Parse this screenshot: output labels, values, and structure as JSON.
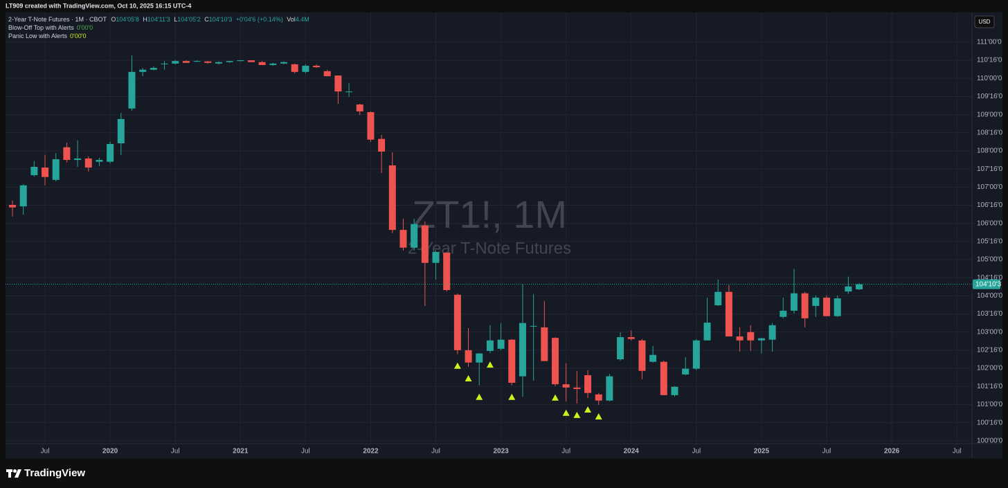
{
  "chart_data": {
    "type": "candlestick",
    "credit": "LT909 created with TradingView.com, Oct 10, 2025 16:15 UTC-4",
    "symbol_line": "2-Year T-Note Futures · 1M · CBOT",
    "legend": {
      "open_key": "O",
      "open": "104'05'8",
      "high_key": "H",
      "high": "104'11'3",
      "low_key": "L",
      "low": "104'05'2",
      "close_key": "C",
      "close": "104'10'3",
      "change": "+0'04'6 (+0.14%)",
      "volume_key": "Vol",
      "volume": "4.4M"
    },
    "indicators": [
      {
        "name": "Blow-Off Top with Alerts",
        "value": "0'00'0"
      },
      {
        "name": "Panic Low with Alerts",
        "value": "0'00'0"
      }
    ],
    "watermark": "ZT1!, 1M",
    "watermark_subtitle": "2-Year T-Note Futures",
    "currency": "USD",
    "brand": "TradingView",
    "up_color": "#26a69a",
    "down_color": "#ef5350",
    "signal_color": "#cdf01e",
    "grid": true,
    "x": [
      "2019-04",
      "2019-05",
      "2019-06",
      "2019-07",
      "2019-08",
      "2019-09",
      "2019-10",
      "2019-11",
      "2019-12",
      "2020-01",
      "2020-02",
      "2020-03",
      "2020-04",
      "2020-05",
      "2020-06",
      "2020-07",
      "2020-08",
      "2020-09",
      "2020-10",
      "2020-11",
      "2020-12",
      "2021-01",
      "2021-02",
      "2021-03",
      "2021-04",
      "2021-05",
      "2021-06",
      "2021-07",
      "2021-08",
      "2021-09",
      "2021-10",
      "2021-11",
      "2021-12",
      "2022-01",
      "2022-02",
      "2022-03",
      "2022-04",
      "2022-05",
      "2022-06",
      "2022-07",
      "2022-08",
      "2022-09",
      "2022-10",
      "2022-11",
      "2022-12",
      "2023-01",
      "2023-02",
      "2023-03",
      "2023-04",
      "2023-05",
      "2023-06",
      "2023-07",
      "2023-08",
      "2023-09",
      "2023-10",
      "2023-11",
      "2023-12",
      "2024-01",
      "2024-02",
      "2024-03",
      "2024-04",
      "2024-05",
      "2024-06",
      "2024-07",
      "2024-08",
      "2024-09",
      "2024-10",
      "2024-11",
      "2024-12",
      "2025-01",
      "2025-02",
      "2025-03",
      "2025-04",
      "2025-05",
      "2025-06",
      "2025-07",
      "2025-08",
      "2025-09",
      "2025-10"
    ],
    "ohlc": [
      [
        106.51,
        106.63,
        106.19,
        106.44
      ],
      [
        106.47,
        107.08,
        106.24,
        107.05
      ],
      [
        107.33,
        107.72,
        107.29,
        107.56
      ],
      [
        107.54,
        107.89,
        107.05,
        107.28
      ],
      [
        107.2,
        107.94,
        107.16,
        107.77
      ],
      [
        108.1,
        108.23,
        107.68,
        107.75
      ],
      [
        107.75,
        108.29,
        107.56,
        107.79
      ],
      [
        107.79,
        107.85,
        107.43,
        107.54
      ],
      [
        107.7,
        107.81,
        107.58,
        107.75
      ],
      [
        107.7,
        108.25,
        107.66,
        108.19
      ],
      [
        108.21,
        109.05,
        107.89,
        108.88
      ],
      [
        109.17,
        110.64,
        109.11,
        110.18
      ],
      [
        110.18,
        110.29,
        110.06,
        110.24
      ],
      [
        110.24,
        110.33,
        110.22,
        110.29
      ],
      [
        110.39,
        110.48,
        110.24,
        110.41
      ],
      [
        110.41,
        110.5,
        110.39,
        110.48
      ],
      [
        110.48,
        110.5,
        110.43,
        110.43
      ],
      [
        110.47,
        110.5,
        110.45,
        110.48
      ],
      [
        110.47,
        110.48,
        110.41,
        110.43
      ],
      [
        110.41,
        110.47,
        110.39,
        110.45
      ],
      [
        110.45,
        110.48,
        110.43,
        110.48
      ],
      [
        110.48,
        110.5,
        110.47,
        110.5
      ],
      [
        110.5,
        110.5,
        110.45,
        110.45
      ],
      [
        110.45,
        110.48,
        110.37,
        110.37
      ],
      [
        110.37,
        110.43,
        110.35,
        110.41
      ],
      [
        110.41,
        110.47,
        110.39,
        110.45
      ],
      [
        110.39,
        110.41,
        110.14,
        110.18
      ],
      [
        110.18,
        110.39,
        110.14,
        110.35
      ],
      [
        110.35,
        110.39,
        110.29,
        110.31
      ],
      [
        110.2,
        110.24,
        110.06,
        110.06
      ],
      [
        110.08,
        110.08,
        109.3,
        109.64
      ],
      [
        109.62,
        109.87,
        109.49,
        109.64
      ],
      [
        109.28,
        109.3,
        108.99,
        109.09
      ],
      [
        109.07,
        109.09,
        108.25,
        108.31
      ],
      [
        108.33,
        108.44,
        107.39,
        107.98
      ],
      [
        107.6,
        107.96,
        105.73,
        105.82
      ],
      [
        105.82,
        106.13,
        105.25,
        105.33
      ],
      [
        105.33,
        106.13,
        105.25,
        105.98
      ],
      [
        105.94,
        106.05,
        103.72,
        104.91
      ],
      [
        104.91,
        105.25,
        104.45,
        105.21
      ],
      [
        105.19,
        105.21,
        104.12,
        104.16
      ],
      [
        104.03,
        104.07,
        102.39,
        102.5
      ],
      [
        102.5,
        103.11,
        102.04,
        102.16
      ],
      [
        102.16,
        102.42,
        101.53,
        102.41
      ],
      [
        102.48,
        103.19,
        102.42,
        102.77
      ],
      [
        102.54,
        103.25,
        102.5,
        102.79
      ],
      [
        102.79,
        102.81,
        101.53,
        101.6
      ],
      [
        101.78,
        104.32,
        101.22,
        103.25
      ],
      [
        103.15,
        104.05,
        101.66,
        103.17
      ],
      [
        103.13,
        103.86,
        102.2,
        102.2
      ],
      [
        102.84,
        102.86,
        101.51,
        101.56
      ],
      [
        101.56,
        102.14,
        101.09,
        101.47
      ],
      [
        101.47,
        101.93,
        101.03,
        101.43
      ],
      [
        101.81,
        101.95,
        101.18,
        101.32
      ],
      [
        101.28,
        101.32,
        100.99,
        101.11
      ],
      [
        101.11,
        101.85,
        101.09,
        101.78
      ],
      [
        102.25,
        103.0,
        102.21,
        102.86
      ],
      [
        102.86,
        103.05,
        102.77,
        102.81
      ],
      [
        102.77,
        102.81,
        101.7,
        101.93
      ],
      [
        102.18,
        102.62,
        102.16,
        102.37
      ],
      [
        102.18,
        102.21,
        101.26,
        101.26
      ],
      [
        101.26,
        101.51,
        101.22,
        101.49
      ],
      [
        101.83,
        102.31,
        101.81,
        101.99
      ],
      [
        101.99,
        102.81,
        101.95,
        102.77
      ],
      [
        102.77,
        103.95,
        102.77,
        103.26
      ],
      [
        103.74,
        104.45,
        103.72,
        104.11
      ],
      [
        104.11,
        104.3,
        102.88,
        102.88
      ],
      [
        102.88,
        103.13,
        102.46,
        102.77
      ],
      [
        103.0,
        103.19,
        102.48,
        102.77
      ],
      [
        102.77,
        102.84,
        102.41,
        102.83
      ],
      [
        102.79,
        103.25,
        102.46,
        103.19
      ],
      [
        103.42,
        103.95,
        103.38,
        103.59
      ],
      [
        103.59,
        104.74,
        103.51,
        104.07
      ],
      [
        104.07,
        104.11,
        103.13,
        103.38
      ],
      [
        103.72,
        104.01,
        103.42,
        103.95
      ],
      [
        103.95,
        104.01,
        103.44,
        103.44
      ],
      [
        103.44,
        104.01,
        103.42,
        103.93
      ],
      [
        104.12,
        104.53,
        104.05,
        104.26
      ],
      [
        104.18,
        104.35,
        104.16,
        104.32
      ]
    ],
    "panic_low_signals": [
      "2022-09",
      "2022-10",
      "2022-11",
      "2022-12",
      "2023-02",
      "2023-06",
      "2023-07",
      "2023-08",
      "2023-09",
      "2023-10"
    ],
    "last_price": {
      "value": 104.32,
      "label": "104'10'3"
    },
    "ylim": [
      99.92,
      111.82
    ],
    "yticks": [
      {
        "value": 100,
        "label": "100'00'0"
      },
      {
        "value": 100.5,
        "label": "100'16'0"
      },
      {
        "value": 101,
        "label": "101'00'0"
      },
      {
        "value": 101.5,
        "label": "101'16'0"
      },
      {
        "value": 102,
        "label": "102'00'0"
      },
      {
        "value": 102.5,
        "label": "102'16'0"
      },
      {
        "value": 103,
        "label": "103'00'0"
      },
      {
        "value": 103.5,
        "label": "103'16'0"
      },
      {
        "value": 104,
        "label": "104'00'0"
      },
      {
        "value": 104.5,
        "label": "104'16'0"
      },
      {
        "value": 105,
        "label": "105'00'0"
      },
      {
        "value": 105.5,
        "label": "105'16'0"
      },
      {
        "value": 106,
        "label": "106'00'0"
      },
      {
        "value": 106.5,
        "label": "106'16'0"
      },
      {
        "value": 107,
        "label": "107'00'0"
      },
      {
        "value": 107.5,
        "label": "107'16'0"
      },
      {
        "value": 108,
        "label": "108'00'0"
      },
      {
        "value": 108.5,
        "label": "108'16'0"
      },
      {
        "value": 109,
        "label": "109'00'0"
      },
      {
        "value": 109.5,
        "label": "109'16'0"
      },
      {
        "value": 110,
        "label": "110'00'0"
      },
      {
        "value": 110.5,
        "label": "110'16'0"
      },
      {
        "value": 111,
        "label": "111'00'0"
      }
    ],
    "xticks": [
      {
        "value": "2019-07",
        "label": "Jul"
      },
      {
        "value": "2020-01",
        "label": "2020"
      },
      {
        "value": "2020-07",
        "label": "Jul"
      },
      {
        "value": "2021-01",
        "label": "2021"
      },
      {
        "value": "2021-07",
        "label": "Jul"
      },
      {
        "value": "2022-01",
        "label": "2022"
      },
      {
        "value": "2022-07",
        "label": "Jul"
      },
      {
        "value": "2023-01",
        "label": "2023"
      },
      {
        "value": "2023-07",
        "label": "Jul"
      },
      {
        "value": "2024-01",
        "label": "2024"
      },
      {
        "value": "2024-07",
        "label": "Jul"
      },
      {
        "value": "2025-01",
        "label": "2025"
      },
      {
        "value": "2025-07",
        "label": "Jul"
      },
      {
        "value": "2026-01",
        "label": "2026"
      },
      {
        "value": "2026-07",
        "label": "Jul"
      }
    ]
  }
}
